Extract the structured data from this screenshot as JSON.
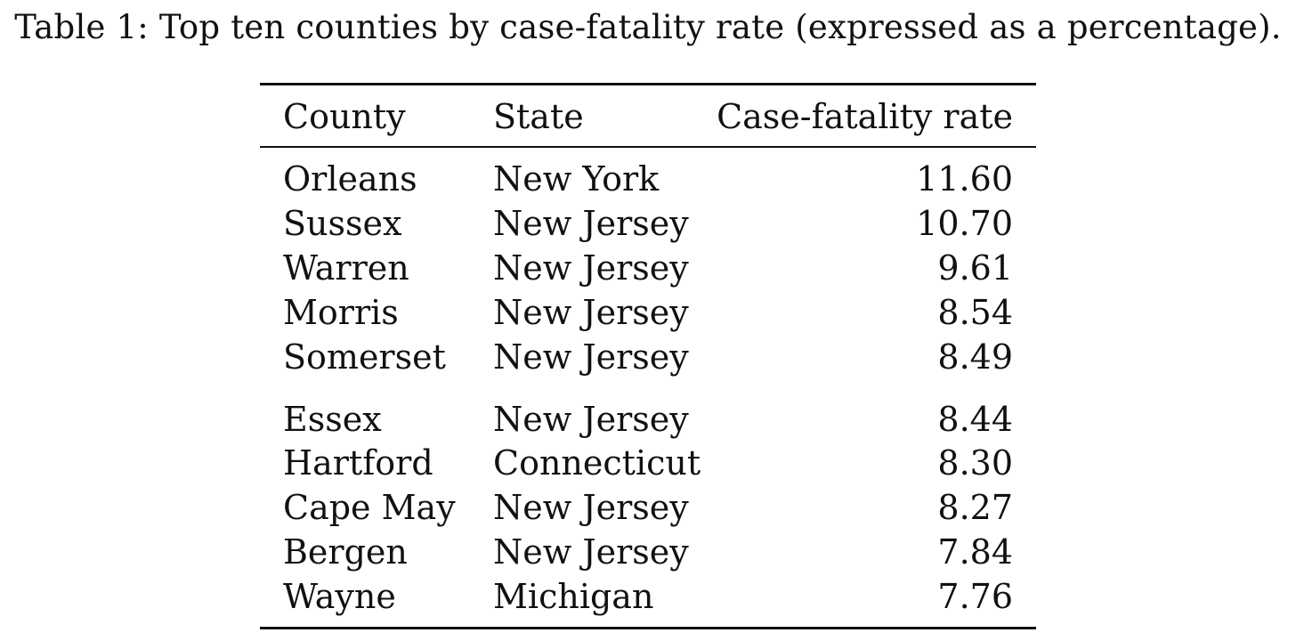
{
  "caption": "Table 1: Top ten counties by case-fatality rate (expressed as a percentage).",
  "table": {
    "headers": {
      "county": "County",
      "state": "State",
      "rate": "Case-fatality rate"
    },
    "rows": [
      {
        "county": "Orleans",
        "state": "New York",
        "rate": "11.60"
      },
      {
        "county": "Sussex",
        "state": "New Jersey",
        "rate": "10.70"
      },
      {
        "county": "Warren",
        "state": "New Jersey",
        "rate": "9.61"
      },
      {
        "county": "Morris",
        "state": "New Jersey",
        "rate": "8.54"
      },
      {
        "county": "Somerset",
        "state": "New Jersey",
        "rate": "8.49"
      },
      {
        "county": "Essex",
        "state": "New Jersey",
        "rate": "8.44"
      },
      {
        "county": "Hartford",
        "state": "Connecticut",
        "rate": "8.30"
      },
      {
        "county": "Cape May",
        "state": "New Jersey",
        "rate": "8.27"
      },
      {
        "county": "Bergen",
        "state": "New Jersey",
        "rate": "7.84"
      },
      {
        "county": "Wayne",
        "state": "Michigan",
        "rate": "7.76"
      }
    ]
  }
}
